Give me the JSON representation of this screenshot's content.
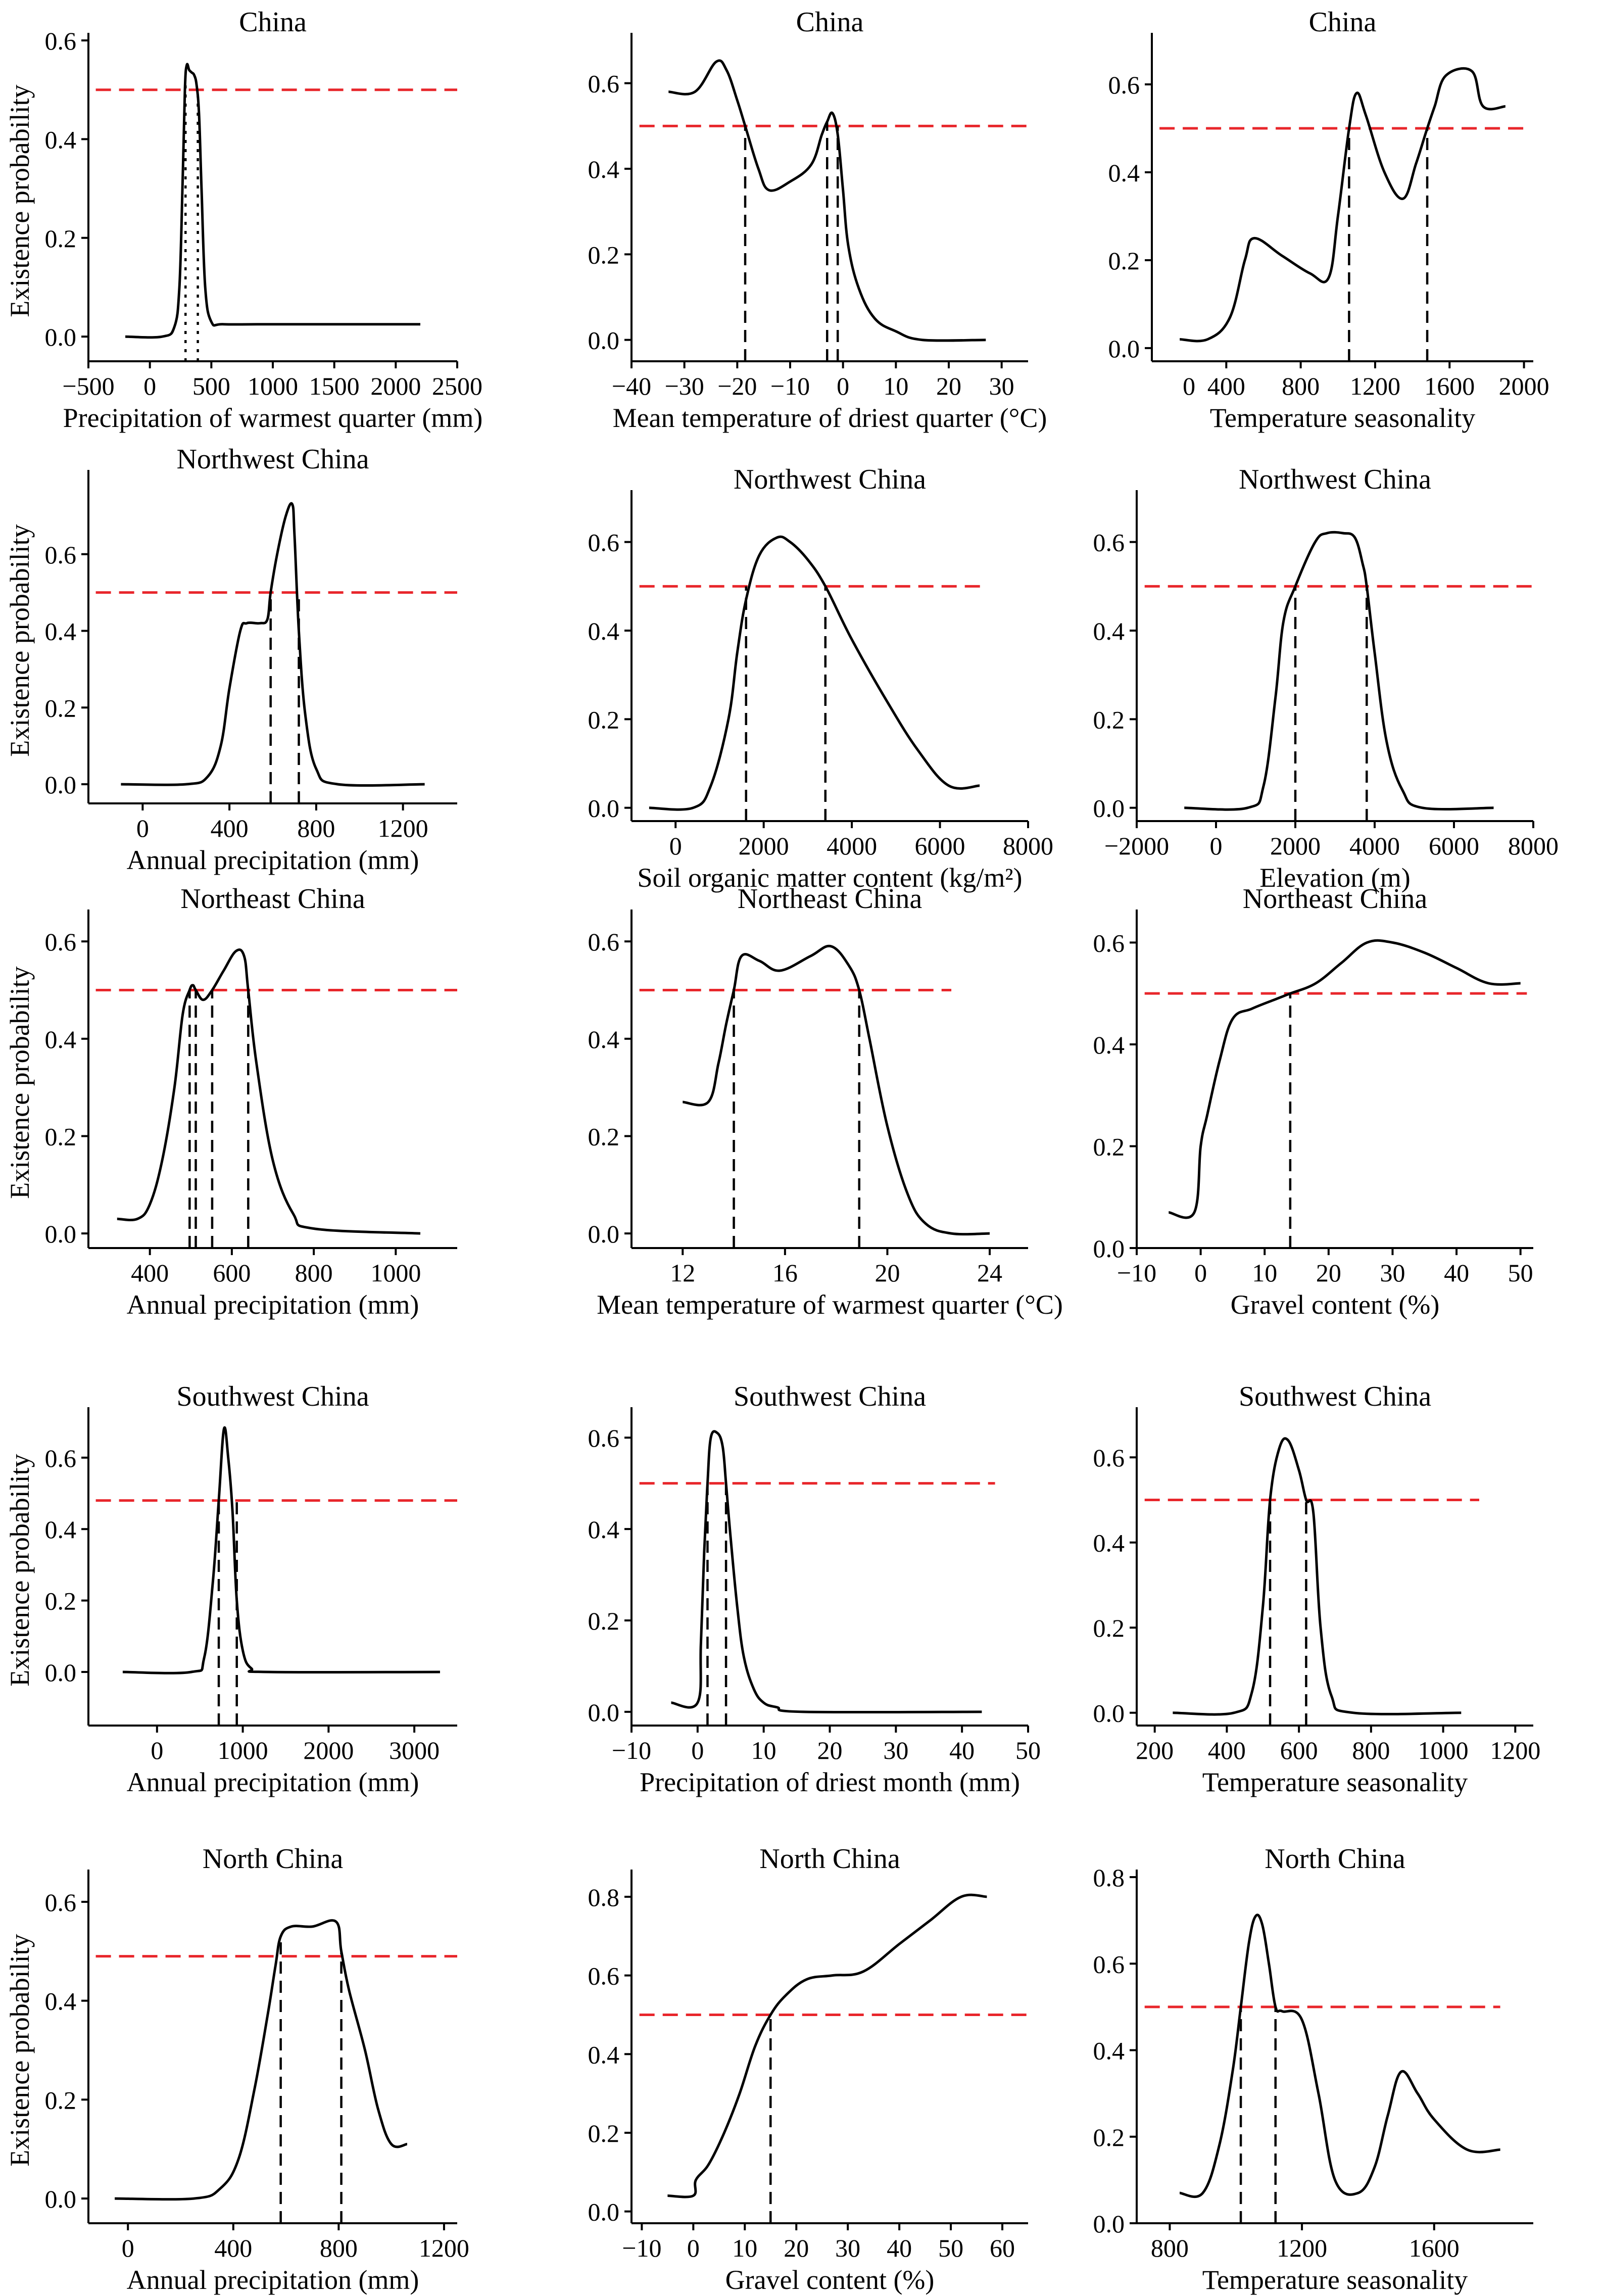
{
  "figure": {
    "threshold_color": "#e8262b",
    "line_color": "#000000"
  },
  "chart_data": [
    {
      "type": "line",
      "title": "China",
      "xlabel": "Precipitation of warmest quarter (mm)",
      "ylabel": "Existence probability",
      "xlim": [
        -500,
        2500
      ],
      "ylim": [
        -0.05,
        0.6
      ],
      "xticks": [
        -500,
        0,
        500,
        1000,
        1500,
        2000,
        2500
      ],
      "xtick_labels": [
        "−500",
        "0",
        "500",
        "1000",
        "1500",
        "2000",
        "2500"
      ],
      "yticks": [
        0.0,
        0.2,
        0.4,
        0.6
      ],
      "ytick_labels": [
        "0.0",
        "0.2",
        "0.4",
        "0.6"
      ],
      "threshold": 0.5,
      "threshold_x_end": 2500,
      "vlines_style": "dotted",
      "vlines": [
        290,
        390
      ],
      "x": [
        -200,
        100,
        200,
        240,
        265,
        285,
        300,
        320,
        340,
        360,
        380,
        400,
        420,
        450,
        500,
        600,
        1000,
        2200
      ],
      "y": [
        0.0,
        0.0,
        0.02,
        0.1,
        0.3,
        0.5,
        0.55,
        0.54,
        0.535,
        0.53,
        0.51,
        0.45,
        0.3,
        0.1,
        0.03,
        0.025,
        0.025,
        0.025
      ]
    },
    {
      "type": "line",
      "title": "China",
      "xlabel": "Mean temperature of driest quarter (°C)",
      "ylabel": "",
      "xlim": [
        -40,
        35
      ],
      "ylim": [
        -0.05,
        0.7
      ],
      "xticks": [
        -40,
        -30,
        -20,
        -10,
        0,
        10,
        20,
        30
      ],
      "xtick_labels": [
        "−40",
        "−30",
        "−20",
        "−10",
        "0",
        "10",
        "20",
        "30"
      ],
      "yticks": [
        0.0,
        0.2,
        0.4,
        0.6
      ],
      "ytick_labels": [
        "0.0",
        "0.2",
        "0.4",
        "0.6"
      ],
      "threshold": 0.5,
      "threshold_x_end": 35,
      "vlines_style": "dashed",
      "vlines": [
        -18.5,
        -3,
        -1
      ],
      "x": [
        -33,
        -28,
        -24,
        -22,
        -20,
        -18.5,
        -16,
        -14,
        -10,
        -6,
        -4,
        -3,
        -2,
        -1,
        0,
        1,
        3,
        6,
        10,
        15,
        27
      ],
      "y": [
        0.58,
        0.58,
        0.65,
        0.63,
        0.56,
        0.5,
        0.4,
        0.35,
        0.37,
        0.41,
        0.48,
        0.51,
        0.53,
        0.48,
        0.35,
        0.22,
        0.12,
        0.05,
        0.02,
        0.0,
        0.0
      ]
    },
    {
      "type": "line",
      "title": "China",
      "xlabel": "Temperature seasonality",
      "ylabel": "",
      "xlim": [
        0,
        2050
      ],
      "ylim": [
        -0.03,
        0.7
      ],
      "xticks": [
        400,
        800,
        1200,
        1600,
        2000
      ],
      "xtick_labels": [
        "400",
        "800",
        "1200",
        "1600",
        "2000"
      ],
      "yticks": [
        0.0,
        0.2,
        0.4,
        0.6
      ],
      "ytick_labels": [
        "0.0",
        "0.2",
        "0.4",
        "0.6"
      ],
      "xtick_extra": [
        {
          "value": 200,
          "label": "0"
        }
      ],
      "threshold": 0.5,
      "threshold_x_end": 2000,
      "vlines_style": "dashed",
      "vlines": [
        1060,
        1480
      ],
      "x": [
        150,
        300,
        420,
        500,
        550,
        700,
        850,
        950,
        1000,
        1060,
        1100,
        1150,
        1250,
        1350,
        1420,
        1480,
        1520,
        1580,
        1720,
        1780,
        1900
      ],
      "y": [
        0.02,
        0.02,
        0.07,
        0.2,
        0.25,
        0.21,
        0.17,
        0.16,
        0.3,
        0.5,
        0.58,
        0.53,
        0.4,
        0.34,
        0.42,
        0.5,
        0.55,
        0.62,
        0.63,
        0.55,
        0.55
      ]
    },
    {
      "type": "line",
      "title": "Northwest China",
      "xlabel": "Annual precipitation (mm)",
      "ylabel": "Existence probability",
      "xlim": [
        -250,
        1450
      ],
      "ylim": [
        -0.05,
        0.8
      ],
      "xticks": [
        0,
        400,
        800,
        1200
      ],
      "xtick_labels": [
        "0",
        "400",
        "800",
        "1200"
      ],
      "yticks": [
        0.0,
        0.2,
        0.4,
        0.6
      ],
      "ytick_labels": [
        "0.0",
        "0.2",
        "0.4",
        "0.6"
      ],
      "threshold": 0.5,
      "threshold_x_end": 1450,
      "vlines_style": "dashed",
      "vlines": [
        590,
        720
      ],
      "x": [
        -100,
        200,
        300,
        360,
        400,
        450,
        480,
        540,
        575,
        590,
        620,
        660,
        690,
        700,
        720,
        750,
        800,
        900,
        1300
      ],
      "y": [
        0.0,
        0.0,
        0.02,
        0.1,
        0.25,
        0.4,
        0.42,
        0.42,
        0.43,
        0.5,
        0.6,
        0.7,
        0.73,
        0.65,
        0.4,
        0.18,
        0.04,
        0.0,
        0.0
      ]
    },
    {
      "type": "line",
      "title": "Northwest China",
      "xlabel": "Soil organic matter content (kg/m²)",
      "ylabel": "",
      "xlim": [
        -1000,
        8000
      ],
      "ylim": [
        -0.03,
        0.7
      ],
      "xticks": [
        0,
        2000,
        4000,
        6000,
        8000
      ],
      "xtick_labels": [
        "0",
        "2000",
        "4000",
        "6000",
        "8000"
      ],
      "yticks": [
        0.0,
        0.2,
        0.4,
        0.6
      ],
      "ytick_labels": [
        "0.0",
        "0.2",
        "0.4",
        "0.6"
      ],
      "threshold": 0.5,
      "threshold_x_end": 7000,
      "vlines_style": "dashed",
      "vlines": [
        1600,
        3400
      ],
      "x": [
        -600,
        400,
        800,
        1200,
        1400,
        1600,
        1900,
        2300,
        2600,
        3000,
        3400,
        4000,
        4800,
        5500,
        6200,
        6900
      ],
      "y": [
        0.0,
        0.0,
        0.05,
        0.2,
        0.35,
        0.47,
        0.57,
        0.61,
        0.6,
        0.56,
        0.5,
        0.38,
        0.24,
        0.13,
        0.05,
        0.05
      ]
    },
    {
      "type": "line",
      "title": "Northwest China",
      "xlabel": "Elevation (m)",
      "ylabel": "",
      "xlim": [
        -2000,
        8000
      ],
      "ylim": [
        -0.03,
        0.7
      ],
      "xticks": [
        -2000,
        0,
        2000,
        4000,
        6000,
        8000
      ],
      "xtick_labels": [
        "−2000",
        "0",
        "2000",
        "4000",
        "6000",
        "8000"
      ],
      "yticks": [
        0.0,
        0.2,
        0.4,
        0.6
      ],
      "ytick_labels": [
        "0.0",
        "0.2",
        "0.4",
        "0.6"
      ],
      "threshold": 0.5,
      "threshold_x_end": 8000,
      "vlines_style": "dashed",
      "vlines": [
        2000,
        3800
      ],
      "x": [
        -800,
        800,
        1200,
        1500,
        1700,
        2000,
        2500,
        2800,
        3200,
        3500,
        3700,
        3800,
        4000,
        4300,
        4700,
        5200,
        7000
      ],
      "y": [
        0.0,
        0.0,
        0.05,
        0.25,
        0.42,
        0.5,
        0.6,
        0.62,
        0.62,
        0.61,
        0.55,
        0.5,
        0.35,
        0.15,
        0.04,
        0.0,
        0.0
      ]
    },
    {
      "type": "line",
      "title": "Northeast China",
      "xlabel": "Annual precipitation (mm)",
      "ylabel": "Existence probability",
      "xlim": [
        250,
        1150
      ],
      "ylim": [
        -0.03,
        0.65
      ],
      "xticks": [
        400,
        600,
        800,
        1000
      ],
      "xtick_labels": [
        "400",
        "600",
        "800",
        "1000"
      ],
      "yticks": [
        0.0,
        0.2,
        0.4,
        0.6
      ],
      "ytick_labels": [
        "0.0",
        "0.2",
        "0.4",
        "0.6"
      ],
      "threshold": 0.5,
      "threshold_x_end": 1150,
      "vlines_style": "dashed",
      "vlines": [
        497,
        512,
        552,
        640
      ],
      "x": [
        320,
        370,
        400,
        430,
        460,
        480,
        497,
        505,
        512,
        530,
        552,
        580,
        610,
        630,
        640,
        660,
        700,
        750,
        800,
        1060
      ],
      "y": [
        0.03,
        0.03,
        0.06,
        0.15,
        0.3,
        0.45,
        0.5,
        0.51,
        0.5,
        0.48,
        0.5,
        0.54,
        0.58,
        0.57,
        0.5,
        0.35,
        0.15,
        0.04,
        0.01,
        0.0
      ]
    },
    {
      "type": "line",
      "title": "Northeast China",
      "xlabel": "Mean temperature of warmest quarter (°C)",
      "ylabel": "",
      "xlim": [
        10,
        25.5
      ],
      "ylim": [
        -0.03,
        0.65
      ],
      "xticks": [
        12,
        16,
        20,
        24
      ],
      "xtick_labels": [
        "12",
        "16",
        "20",
        "24"
      ],
      "yticks": [
        0.0,
        0.2,
        0.4,
        0.6
      ],
      "ytick_labels": [
        "0.0",
        "0.2",
        "0.4",
        "0.6"
      ],
      "threshold": 0.5,
      "threshold_x_end": 22.5,
      "vlines_style": "dashed",
      "vlines": [
        14,
        18.9
      ],
      "x": [
        12,
        13,
        13.4,
        13.7,
        14.0,
        14.3,
        15,
        15.8,
        17,
        17.8,
        18.5,
        18.9,
        19.3,
        20,
        20.8,
        21.5,
        22.5,
        24
      ],
      "y": [
        0.27,
        0.27,
        0.35,
        0.43,
        0.5,
        0.57,
        0.56,
        0.54,
        0.57,
        0.59,
        0.55,
        0.5,
        0.4,
        0.22,
        0.08,
        0.02,
        0.0,
        0.0
      ]
    },
    {
      "type": "line",
      "title": "Northeast China",
      "xlabel": "Gravel content (%)",
      "ylabel": "",
      "xlim": [
        -10,
        52
      ],
      "ylim": [
        0.0,
        0.65
      ],
      "xticks": [
        -10,
        0,
        10,
        20,
        30,
        40,
        50
      ],
      "xtick_labels": [
        "−10",
        "0",
        "10",
        "20",
        "30",
        "40",
        "50"
      ],
      "yticks": [
        0.0,
        0.2,
        0.4,
        0.6
      ],
      "ytick_labels": [
        "0.0",
        "0.2",
        "0.4",
        "0.6"
      ],
      "threshold": 0.5,
      "threshold_x_end": 51,
      "vlines_style": "dashed",
      "vlines": [
        14
      ],
      "x": [
        -5,
        -1,
        0,
        1,
        3,
        5,
        8,
        12,
        14,
        18,
        22,
        26,
        30,
        35,
        40,
        45,
        50
      ],
      "y": [
        0.07,
        0.07,
        0.2,
        0.26,
        0.37,
        0.45,
        0.47,
        0.49,
        0.5,
        0.52,
        0.56,
        0.6,
        0.6,
        0.58,
        0.55,
        0.52,
        0.52
      ]
    },
    {
      "type": "line",
      "title": "Southwest China",
      "xlabel": "Annual precipitation (mm)",
      "ylabel": "Existence probability",
      "xlim": [
        -800,
        3500
      ],
      "ylim": [
        -0.15,
        0.72
      ],
      "xticks": [
        0,
        1000,
        2000,
        3000
      ],
      "xtick_labels": [
        "0",
        "1000",
        "2000",
        "3000"
      ],
      "yticks": [
        0.0,
        0.2,
        0.4,
        0.6
      ],
      "ytick_labels": [
        "0.0",
        "0.2",
        "0.4",
        "0.6"
      ],
      "threshold": 0.48,
      "threshold_x_end": 3500,
      "vlines_style": "dashed",
      "vlines": [
        720,
        930
      ],
      "x": [
        -400,
        400,
        550,
        650,
        720,
        780,
        830,
        880,
        930,
        1000,
        1100,
        1300,
        3300
      ],
      "y": [
        0.0,
        0.0,
        0.04,
        0.25,
        0.48,
        0.68,
        0.6,
        0.45,
        0.2,
        0.06,
        0.01,
        0.0,
        0.0
      ]
    },
    {
      "type": "line",
      "title": "Southwest China",
      "xlabel": "Precipitation of driest month (mm)",
      "ylabel": "",
      "xlim": [
        -10,
        50
      ],
      "ylim": [
        -0.03,
        0.65
      ],
      "xticks": [
        -10,
        0,
        10,
        20,
        30,
        40,
        50
      ],
      "xtick_labels": [
        "−10",
        "0",
        "10",
        "20",
        "30",
        "40",
        "50"
      ],
      "yticks": [
        0.0,
        0.2,
        0.4,
        0.6
      ],
      "ytick_labels": [
        "0.0",
        "0.2",
        "0.4",
        "0.6"
      ],
      "threshold": 0.5,
      "threshold_x_end": 45,
      "vlines_style": "dashed",
      "vlines": [
        1.5,
        4.3
      ],
      "x": [
        -4,
        0,
        0.5,
        1,
        1.5,
        2,
        3,
        3.8,
        4.3,
        5,
        6,
        7,
        8.5,
        10,
        12,
        16,
        43
      ],
      "y": [
        0.02,
        0.02,
        0.15,
        0.35,
        0.5,
        0.6,
        0.61,
        0.58,
        0.5,
        0.38,
        0.23,
        0.12,
        0.05,
        0.02,
        0.01,
        0.0,
        0.0
      ]
    },
    {
      "type": "line",
      "title": "Southwest China",
      "xlabel": "Temperature seasonality",
      "ylabel": "",
      "xlim": [
        150,
        1250
      ],
      "ylim": [
        -0.03,
        0.7
      ],
      "xticks": [
        200,
        400,
        600,
        800,
        1000,
        1200
      ],
      "xtick_labels": [
        "200",
        "400",
        "600",
        "800",
        "1000",
        "1200"
      ],
      "yticks": [
        0.0,
        0.2,
        0.4,
        0.6
      ],
      "ytick_labels": [
        "0.0",
        "0.2",
        "0.4",
        "0.6"
      ],
      "threshold": 0.5,
      "threshold_x_end": 1100,
      "vlines_style": "dashed",
      "vlines": [
        520,
        620
      ],
      "x": [
        250,
        420,
        470,
        500,
        520,
        545,
        570,
        600,
        620,
        640,
        660,
        690,
        750,
        1050
      ],
      "y": [
        0.0,
        0.0,
        0.05,
        0.25,
        0.5,
        0.62,
        0.64,
        0.57,
        0.5,
        0.47,
        0.2,
        0.04,
        0.0,
        0.0
      ]
    },
    {
      "type": "line",
      "title": "North China",
      "xlabel": "Annual precipitation (mm)",
      "ylabel": "Existence probability",
      "xlim": [
        -150,
        1250
      ],
      "ylim": [
        -0.05,
        0.65
      ],
      "xticks": [
        0,
        400,
        800,
        1200
      ],
      "xtick_labels": [
        "0",
        "400",
        "800",
        "1200"
      ],
      "yticks": [
        0.0,
        0.2,
        0.4,
        0.6
      ],
      "ytick_labels": [
        "0.0",
        "0.2",
        "0.4",
        "0.6"
      ],
      "threshold": 0.49,
      "threshold_x_end": 1250,
      "vlines_style": "dashed",
      "vlines": [
        580,
        810
      ],
      "x": [
        -50,
        250,
        350,
        420,
        480,
        530,
        560,
        580,
        620,
        700,
        790,
        810,
        840,
        900,
        950,
        1000,
        1060
      ],
      "y": [
        0.0,
        0.0,
        0.02,
        0.08,
        0.22,
        0.37,
        0.47,
        0.53,
        0.55,
        0.55,
        0.56,
        0.5,
        0.42,
        0.3,
        0.18,
        0.11,
        0.11
      ]
    },
    {
      "type": "line",
      "title": "North China",
      "xlabel": "Gravel content (%)",
      "ylabel": "",
      "xlim": [
        -12,
        65
      ],
      "ylim": [
        -0.03,
        0.85
      ],
      "xticks": [
        -10,
        0,
        10,
        20,
        30,
        40,
        50,
        60
      ],
      "xtick_labels": [
        "−10",
        "0",
        "10",
        "20",
        "30",
        "40",
        "50",
        "60"
      ],
      "yticks": [
        0.0,
        0.2,
        0.4,
        0.6,
        0.8
      ],
      "ytick_labels": [
        "0.0",
        "0.2",
        "0.4",
        "0.6",
        "0.8"
      ],
      "threshold": 0.5,
      "threshold_x_end": 65,
      "vlines_style": "dashed",
      "vlines": [
        15
      ],
      "x": [
        -5,
        0,
        0.5,
        3,
        6,
        9,
        12,
        15,
        18,
        22,
        27,
        33,
        40,
        46,
        52,
        57
      ],
      "y": [
        0.04,
        0.04,
        0.08,
        0.12,
        0.2,
        0.3,
        0.42,
        0.5,
        0.55,
        0.59,
        0.6,
        0.61,
        0.68,
        0.74,
        0.8,
        0.8
      ]
    },
    {
      "type": "line",
      "title": "North China",
      "xlabel": "Temperature seasonality",
      "ylabel": "",
      "xlim": [
        700,
        1900
      ],
      "ylim": [
        0.0,
        0.8
      ],
      "xticks": [
        800,
        1200,
        1600
      ],
      "xtick_labels": [
        "800",
        "1200",
        "1600"
      ],
      "yticks": [
        0.0,
        0.2,
        0.4,
        0.6,
        0.8
      ],
      "ytick_labels": [
        "0.0",
        "0.2",
        "0.4",
        "0.6",
        "0.8"
      ],
      "threshold": 0.5,
      "threshold_x_end": 1800,
      "vlines_style": "dashed",
      "vlines": [
        1015,
        1120
      ],
      "x": [
        830,
        900,
        950,
        990,
        1015,
        1040,
        1060,
        1080,
        1100,
        1120,
        1140,
        1200,
        1250,
        1300,
        1370,
        1420,
        1460,
        1500,
        1550,
        1600,
        1700,
        1800
      ],
      "y": [
        0.07,
        0.07,
        0.18,
        0.35,
        0.5,
        0.65,
        0.71,
        0.69,
        0.6,
        0.5,
        0.49,
        0.47,
        0.3,
        0.1,
        0.07,
        0.13,
        0.25,
        0.35,
        0.3,
        0.24,
        0.17,
        0.17
      ]
    }
  ]
}
